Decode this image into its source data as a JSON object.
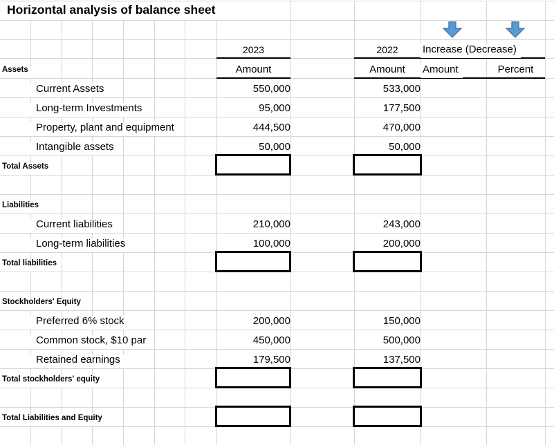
{
  "title": "Horizontal analysis of balance sheet",
  "colors": {
    "arrow_fill": "#5B9BD5",
    "arrow_border": "#41719C",
    "gridline": "#d6d6d6",
    "border": "#000000"
  },
  "header": {
    "year_2023": "2023",
    "year_2022": "2022",
    "increase_decrease": "Increase (Decrease)",
    "amount_2023": "Amount",
    "amount_2022": "Amount",
    "amount_change": "Amount",
    "percent": "Percent"
  },
  "icons": {
    "arrow_amount": "down-arrow",
    "arrow_percent": "down-arrow"
  },
  "sections": {
    "assets": {
      "header": "Assets",
      "items": [
        {
          "label": "Current Assets",
          "y2023": "550,000",
          "y2022": "533,000"
        },
        {
          "label": "Long-term Investments",
          "y2023": "95,000",
          "y2022": "177,500"
        },
        {
          "label": "Property, plant and equipment",
          "y2023": "444,500",
          "y2022": "470,000"
        },
        {
          "label": "Intangible assets",
          "y2023": "50,000",
          "y2022": "50,000"
        }
      ],
      "total_label": "Total Assets",
      "total_2023": "",
      "total_2022": ""
    },
    "liabilities": {
      "header": "Liabilities",
      "items": [
        {
          "label": "Current liabilities",
          "y2023": "210,000",
          "y2022": "243,000"
        },
        {
          "label": "Long-term liabilities",
          "y2023": "100,000",
          "y2022": "200,000"
        }
      ],
      "total_label": "Total liabilities",
      "total_2023": "",
      "total_2022": ""
    },
    "equity": {
      "header": "Stockholders' Equity",
      "items": [
        {
          "label": "Preferred 6% stock",
          "y2023": "200,000",
          "y2022": "150,000"
        },
        {
          "label": "Common stock, $10 par",
          "y2023": "450,000",
          "y2022": "500,000"
        },
        {
          "label": "Retained earnings",
          "y2023": "179,500",
          "y2022": "137,500"
        }
      ],
      "total_label": "Total stockholders' equity",
      "total_2023": "",
      "total_2022": ""
    },
    "grand_total": {
      "label": "Total Liabilities and Equity",
      "total_2023": "",
      "total_2022": ""
    }
  }
}
